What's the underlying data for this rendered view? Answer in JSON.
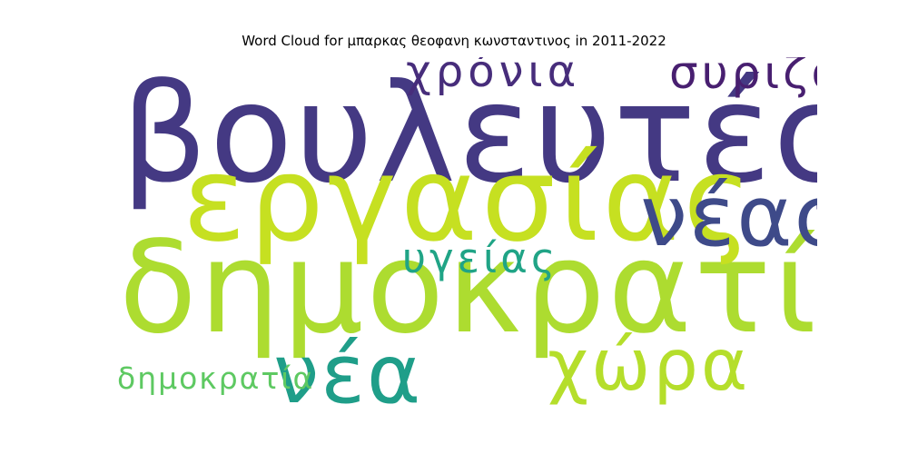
{
  "chart_data": {
    "type": "wordcloud",
    "title": "Word Cloud for μπαρκας θεοφανη κωνσταντινος in 2011-2022",
    "words": [
      {
        "text": "βουλευτές",
        "weight": 1.0,
        "color": "#443983"
      },
      {
        "text": "δημοκρατίας",
        "weight": 0.93,
        "color": "#addc30"
      },
      {
        "text": "εργασίας",
        "weight": 0.86,
        "color": "#c6e021"
      },
      {
        "text": "νέας",
        "weight": 0.62,
        "color": "#3e4a89"
      },
      {
        "text": "νέα",
        "weight": 0.6,
        "color": "#1f9e89"
      },
      {
        "text": "χώρα",
        "weight": 0.52,
        "color": "#b5de2b"
      },
      {
        "text": "συριζα",
        "weight": 0.33,
        "color": "#481f70"
      },
      {
        "text": "χρόνια",
        "weight": 0.32,
        "color": "#472d7b"
      },
      {
        "text": "υγείας",
        "weight": 0.3,
        "color": "#20a486"
      },
      {
        "text": "δημοκρατία",
        "weight": 0.22,
        "color": "#5ec962"
      }
    ]
  }
}
